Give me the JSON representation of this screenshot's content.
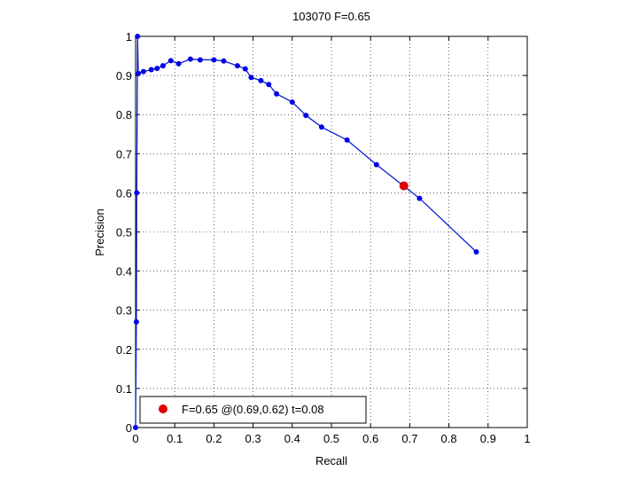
{
  "chart_data": {
    "type": "line",
    "title": "103070 F=0.65",
    "xlabel": "Recall",
    "ylabel": "Precision",
    "xlim": [
      0,
      1
    ],
    "ylim": [
      0,
      1
    ],
    "xticks": [
      "0",
      "0.1",
      "0.2",
      "0.3",
      "0.4",
      "0.5",
      "0.6",
      "0.7",
      "0.8",
      "0.9",
      "1"
    ],
    "yticks": [
      "0",
      "0.1",
      "0.2",
      "0.3",
      "0.4",
      "0.5",
      "0.6",
      "0.7",
      "0.8",
      "0.9",
      "1"
    ],
    "grid": true,
    "legend_position": "bottom-left",
    "colors": {
      "series": "#0a1ecf",
      "marker": "#0000e6",
      "highlight": "#e00000"
    },
    "series": [
      {
        "x": [
          0.0,
          0.002,
          0.003,
          0.005,
          0.007,
          0.02,
          0.04,
          0.055,
          0.07,
          0.09,
          0.11,
          0.14,
          0.165,
          0.2,
          0.225,
          0.26,
          0.28,
          0.295,
          0.32,
          0.34,
          0.36,
          0.4,
          0.435,
          0.475,
          0.54,
          0.615,
          0.725,
          0.87
        ],
        "y": [
          0.0,
          0.27,
          0.6,
          1.0,
          0.905,
          0.91,
          0.915,
          0.918,
          0.925,
          0.938,
          0.93,
          0.942,
          0.94,
          0.94,
          0.937,
          0.925,
          0.917,
          0.895,
          0.887,
          0.877,
          0.853,
          0.832,
          0.798,
          0.768,
          0.735,
          0.672,
          0.586,
          0.449
        ]
      }
    ],
    "highlight_point": {
      "x": 0.685,
      "y": 0.618
    },
    "legend": [
      "F=0.65 @(0.69,0.62) t=0.08"
    ]
  }
}
